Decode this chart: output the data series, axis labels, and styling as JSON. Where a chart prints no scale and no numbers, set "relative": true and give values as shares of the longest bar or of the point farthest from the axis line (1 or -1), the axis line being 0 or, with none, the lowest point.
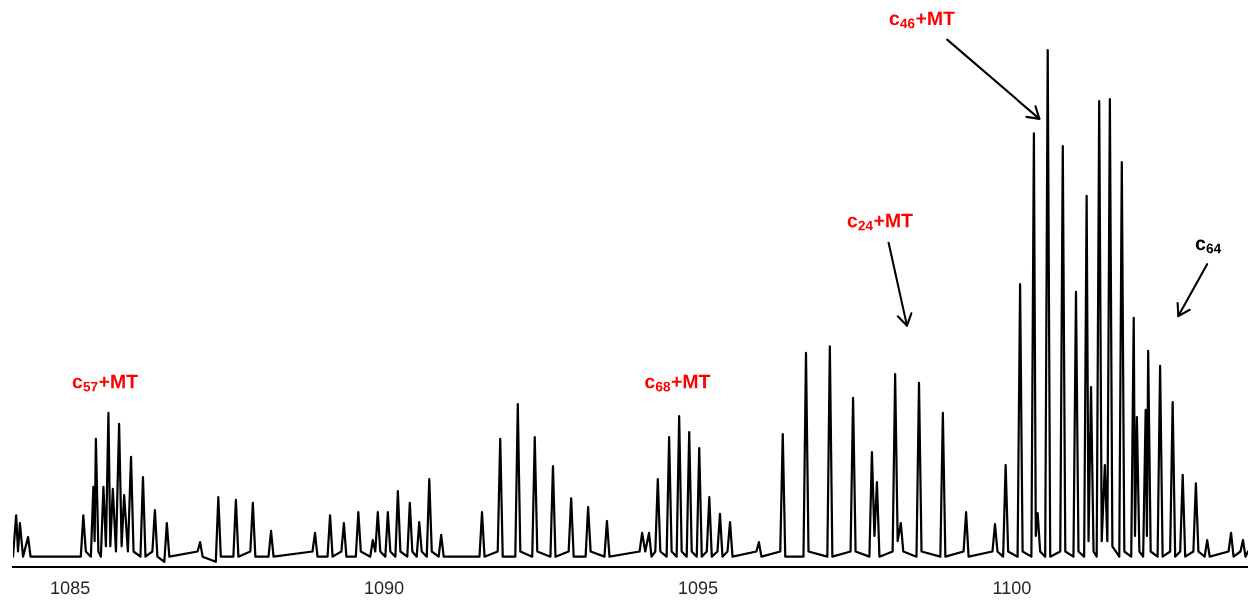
{
  "chart_data": {
    "type": "line",
    "relative": true,
    "color": "#000000",
    "x": [
      1084.09,
      1084.14,
      1084.17,
      1084.2,
      1084.25,
      1084.33,
      1084.37,
      1085.17,
      1085.21,
      1085.25,
      1085.33,
      1085.37,
      1085.39,
      1085.41,
      1085.45,
      1085.49,
      1085.53,
      1085.57,
      1085.61,
      1085.64,
      1085.68,
      1085.73,
      1085.78,
      1085.82,
      1085.86,
      1085.92,
      1085.97,
      1086.01,
      1086.12,
      1086.16,
      1086.2,
      1086.31,
      1086.35,
      1086.39,
      1086.5,
      1086.54,
      1086.58,
      1087.03,
      1087.07,
      1087.11,
      1087.32,
      1087.36,
      1087.4,
      1087.6,
      1087.64,
      1087.68,
      1087.87,
      1087.91,
      1087.95,
      1088.16,
      1088.2,
      1088.24,
      1088.86,
      1088.9,
      1088.94,
      1089.1,
      1089.14,
      1089.18,
      1089.32,
      1089.36,
      1089.4,
      1089.55,
      1089.59,
      1089.63,
      1089.78,
      1089.82,
      1089.86,
      1089.9,
      1089.94,
      1090.02,
      1090.06,
      1090.1,
      1090.18,
      1090.22,
      1090.26,
      1090.37,
      1090.41,
      1090.45,
      1090.52,
      1090.56,
      1090.6,
      1090.68,
      1090.72,
      1090.76,
      1090.87,
      1090.91,
      1090.95,
      1091.52,
      1091.56,
      1091.6,
      1091.81,
      1091.85,
      1091.89,
      1092.09,
      1092.13,
      1092.17,
      1092.36,
      1092.4,
      1092.44,
      1092.65,
      1092.69,
      1092.73,
      1092.94,
      1092.98,
      1093.02,
      1093.21,
      1093.25,
      1093.29,
      1093.51,
      1093.55,
      1093.59,
      1094.07,
      1094.11,
      1094.16,
      1094.22,
      1094.26,
      1094.32,
      1094.36,
      1094.4,
      1094.5,
      1094.54,
      1094.58,
      1094.66,
      1094.7,
      1094.74,
      1094.82,
      1094.86,
      1094.9,
      1094.98,
      1095.02,
      1095.06,
      1095.14,
      1095.18,
      1095.22,
      1095.31,
      1095.35,
      1095.39,
      1095.47,
      1095.51,
      1095.55,
      1095.93,
      1095.97,
      1096.01,
      1096.31,
      1096.35,
      1096.39,
      1096.68,
      1096.72,
      1096.76,
      1097.06,
      1097.1,
      1097.14,
      1097.43,
      1097.47,
      1097.51,
      1097.73,
      1097.77,
      1097.81,
      1097.85,
      1097.89,
      1098.1,
      1098.14,
      1098.18,
      1098.23,
      1098.27,
      1098.48,
      1098.52,
      1098.56,
      1098.86,
      1098.9,
      1098.94,
      1099.23,
      1099.27,
      1099.31,
      1099.69,
      1099.73,
      1099.77,
      1099.86,
      1099.9,
      1099.94,
      1100.09,
      1100.13,
      1100.17,
      1100.31,
      1100.35,
      1100.38,
      1100.41,
      1100.45,
      1100.53,
      1100.57,
      1100.61,
      1100.77,
      1100.81,
      1100.85,
      1100.98,
      1101.02,
      1101.06,
      1101.15,
      1101.19,
      1101.22,
      1101.26,
      1101.3,
      1101.35,
      1101.39,
      1101.43,
      1101.48,
      1101.52,
      1101.56,
      1101.6,
      1101.71,
      1101.75,
      1101.79,
      1101.9,
      1101.94,
      1101.96,
      1101.99,
      1102.03,
      1102.09,
      1102.13,
      1102.15,
      1102.17,
      1102.21,
      1102.32,
      1102.36,
      1102.4,
      1102.52,
      1102.56,
      1102.6,
      1102.68,
      1102.72,
      1102.76,
      1102.89,
      1102.93,
      1102.97,
      1103.07,
      1103.11,
      1103.15,
      1103.45,
      1103.49,
      1103.53,
      1103.64,
      1103.68,
      1103.72,
      1103.76
    ],
    "values": [
      0.02,
      0.1,
      0.03,
      0.085,
      0.02,
      0.058,
      0.02,
      0.02,
      0.1,
      0.03,
      0.02,
      0.155,
      0.05,
      0.248,
      0.03,
      0.02,
      0.155,
      0.04,
      0.298,
      0.04,
      0.151,
      0.03,
      0.277,
      0.04,
      0.139,
      0.03,
      0.213,
      0.03,
      0.02,
      0.174,
      0.02,
      0.03,
      0.11,
      0.02,
      0.01,
      0.085,
      0.02,
      0.03,
      0.048,
      0.02,
      0.01,
      0.135,
      0.02,
      0.02,
      0.13,
      0.02,
      0.03,
      0.124,
      0.02,
      0.02,
      0.07,
      0.02,
      0.03,
      0.066,
      0.02,
      0.02,
      0.1,
      0.02,
      0.03,
      0.085,
      0.02,
      0.02,
      0.106,
      0.03,
      0.02,
      0.052,
      0.03,
      0.106,
      0.03,
      0.02,
      0.106,
      0.03,
      0.02,
      0.147,
      0.03,
      0.02,
      0.124,
      0.03,
      0.02,
      0.087,
      0.03,
      0.02,
      0.17,
      0.03,
      0.02,
      0.062,
      0.02,
      0.02,
      0.106,
      0.02,
      0.03,
      0.248,
      0.02,
      0.02,
      0.315,
      0.03,
      0.02,
      0.251,
      0.03,
      0.02,
      0.195,
      0.02,
      0.03,
      0.133,
      0.02,
      0.02,
      0.116,
      0.03,
      0.02,
      0.089,
      0.02,
      0.03,
      0.066,
      0.03,
      0.066,
      0.02,
      0.03,
      0.17,
      0.03,
      0.02,
      0.251,
      0.03,
      0.02,
      0.292,
      0.03,
      0.02,
      0.261,
      0.03,
      0.02,
      0.23,
      0.02,
      0.03,
      0.135,
      0.02,
      0.03,
      0.103,
      0.02,
      0.03,
      0.087,
      0.02,
      0.03,
      0.048,
      0.02,
      0.03,
      0.257,
      0.02,
      0.02,
      0.414,
      0.03,
      0.02,
      0.427,
      0.02,
      0.03,
      0.327,
      0.03,
      0.02,
      0.222,
      0.06,
      0.164,
      0.02,
      0.03,
      0.373,
      0.05,
      0.085,
      0.03,
      0.02,
      0.356,
      0.03,
      0.02,
      0.298,
      0.02,
      0.03,
      0.106,
      0.02,
      0.03,
      0.083,
      0.03,
      0.02,
      0.197,
      0.03,
      0.02,
      0.547,
      0.03,
      0.02,
      0.839,
      0.06,
      0.104,
      0.03,
      0.02,
      1.0,
      0.02,
      0.03,
      0.814,
      0.03,
      0.02,
      0.532,
      0.03,
      0.02,
      0.718,
      0.05,
      0.348,
      0.03,
      0.02,
      0.901,
      0.05,
      0.197,
      0.05,
      0.905,
      0.04,
      0.02,
      0.783,
      0.03,
      0.02,
      0.482,
      0.06,
      0.29,
      0.03,
      0.02,
      0.304,
      0.06,
      0.418,
      0.03,
      0.02,
      0.389,
      0.02,
      0.03,
      0.319,
      0.02,
      0.03,
      0.178,
      0.02,
      0.03,
      0.162,
      0.03,
      0.02,
      0.052,
      0.02,
      0.03,
      0.066,
      0.02,
      0.03,
      0.052,
      0.02,
      0.03
    ],
    "xlim": [
      1084.09,
      1103.76
    ],
    "xticks": [
      1085,
      1090,
      1095,
      1100
    ],
    "grid": false,
    "line_style": "solid",
    "marker": "none",
    "annotations": [
      "c$_{57}$+MT",
      "c$_{68}$+MT",
      "c$_{24}$+MT",
      "c$_{46}$+MT",
      "c$_{64}$"
    ]
  }
}
